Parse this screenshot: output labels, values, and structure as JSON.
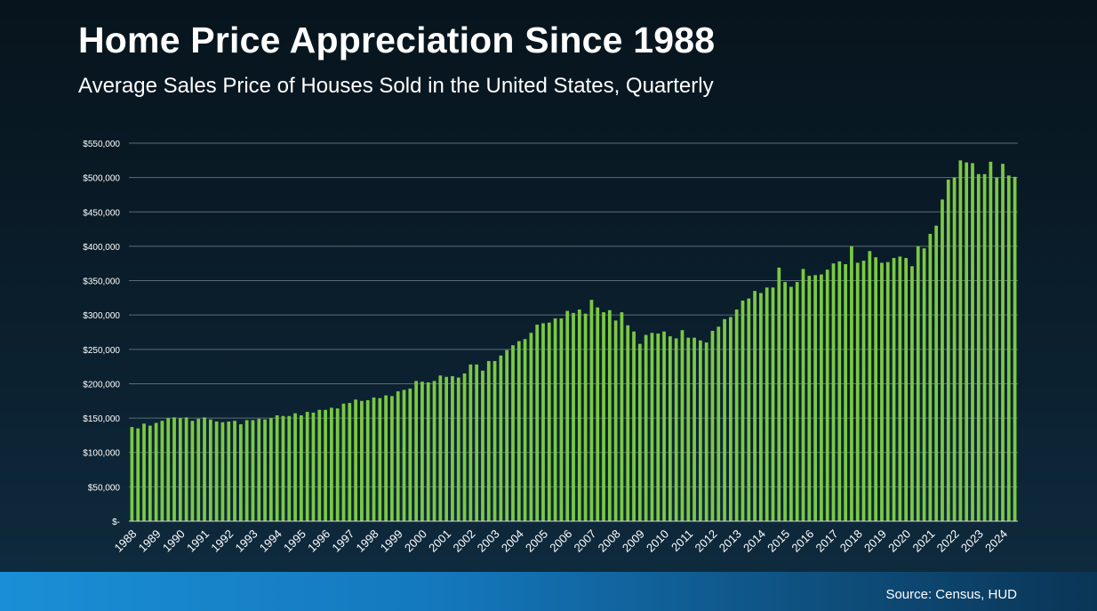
{
  "chart_data": {
    "type": "bar",
    "title": "Home Price Appreciation Since 1988",
    "subtitle": "Average Sales Price of Houses Sold in the United States, Quarterly",
    "source": "Source: Census, HUD",
    "ylim": [
      0,
      550000
    ],
    "grid": true,
    "legend": "none",
    "bar_color": "#7ac943",
    "y_ticks": [
      {
        "value": 0,
        "label": "$-"
      },
      {
        "value": 50000,
        "label": "$50,000"
      },
      {
        "value": 100000,
        "label": "$100,000"
      },
      {
        "value": 150000,
        "label": "$150,000"
      },
      {
        "value": 200000,
        "label": "$200,000"
      },
      {
        "value": 250000,
        "label": "$250,000"
      },
      {
        "value": 300000,
        "label": "$300,000"
      },
      {
        "value": 350000,
        "label": "$350,000"
      },
      {
        "value": 400000,
        "label": "$400,000"
      },
      {
        "value": 450000,
        "label": "$450,000"
      },
      {
        "value": 500000,
        "label": "$500,000"
      },
      {
        "value": 550000,
        "label": "$550,000"
      }
    ],
    "x_tick_labels": [
      "1988",
      "1989",
      "1990",
      "1991",
      "1992",
      "1993",
      "1994",
      "1995",
      "1996",
      "1997",
      "1998",
      "1999",
      "2000",
      "2001",
      "2002",
      "2003",
      "2004",
      "2005",
      "2006",
      "2007",
      "2008",
      "2009",
      "2010",
      "2011",
      "2012",
      "2013",
      "2014",
      "2015",
      "2016",
      "2017",
      "2018",
      "2019",
      "2020",
      "2021",
      "2022",
      "2023",
      "2024"
    ],
    "values": [
      137000,
      135000,
      142000,
      139000,
      143000,
      146000,
      150000,
      151000,
      150000,
      151000,
      146000,
      149000,
      151000,
      148000,
      145000,
      144000,
      145000,
      146000,
      141000,
      147000,
      147000,
      149000,
      148000,
      150000,
      154000,
      153000,
      153000,
      157000,
      154000,
      159000,
      158000,
      162000,
      162000,
      165000,
      164000,
      171000,
      172000,
      177000,
      175000,
      176000,
      180000,
      179000,
      183000,
      182000,
      189000,
      191000,
      193000,
      204000,
      203000,
      202000,
      204000,
      212000,
      210000,
      211000,
      209000,
      215000,
      228000,
      228000,
      219000,
      233000,
      233000,
      241000,
      249000,
      256000,
      262000,
      265000,
      274000,
      286000,
      288000,
      289000,
      295000,
      295000,
      306000,
      303000,
      308000,
      302000,
      322000,
      311000,
      304000,
      307000,
      292000,
      304000,
      285000,
      276000,
      258000,
      271000,
      274000,
      273000,
      276000,
      269000,
      266000,
      278000,
      267000,
      267000,
      263000,
      260000,
      277000,
      283000,
      294000,
      297000,
      308000,
      321000,
      324000,
      335000,
      332000,
      340000,
      340000,
      369000,
      348000,
      341000,
      348000,
      367000,
      357000,
      358000,
      359000,
      366000,
      375000,
      378000,
      374000,
      400000,
      376000,
      379000,
      393000,
      384000,
      376000,
      377000,
      383000,
      385000,
      383000,
      371000,
      400000,
      397000,
      418000,
      430000,
      468000,
      497000,
      500000,
      525000,
      522000,
      521000,
      505000,
      505000,
      523000,
      500000,
      520000,
      503000,
      501000
    ]
  }
}
